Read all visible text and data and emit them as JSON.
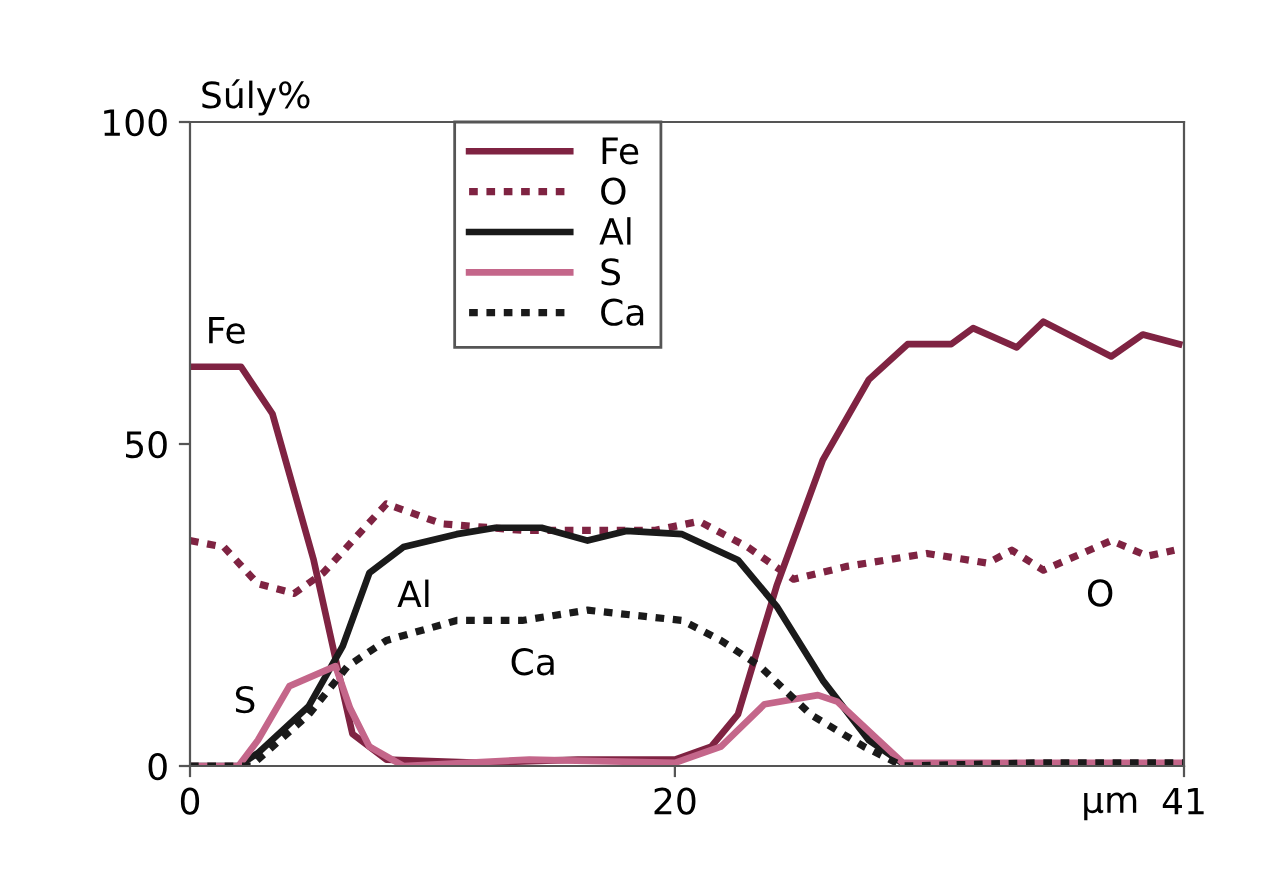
{
  "chart_data": {
    "type": "line",
    "ylabel": "Súly%",
    "xlabel": "µm",
    "xlim": [
      0,
      41
    ],
    "xticks": [
      0,
      20,
      41
    ],
    "ylim": [
      0,
      100
    ],
    "yticks": [
      0,
      50,
      100
    ],
    "grid": false,
    "legend": "top",
    "marker": "none",
    "series": [
      {
        "name": "Fe",
        "color": "#7f2342",
        "line_style": "solid",
        "x": [
          0,
          2.1,
          3.4,
          5.1,
          6.2,
          6.7,
          8.1,
          12,
          16,
          20,
          21.5,
          22.6,
          24.2,
          26.1,
          28,
          29.6,
          31.4,
          32.3,
          34.1,
          35.2,
          38,
          39.3,
          40.8
        ],
        "values": [
          62,
          62,
          54.7,
          32,
          13.3,
          5,
          1,
          0.5,
          1,
          1,
          3,
          8,
          28,
          47.5,
          60,
          65.5,
          65.5,
          68,
          65,
          69,
          63.6,
          67,
          65.5
        ]
      },
      {
        "name": "O",
        "color": "#7f2342",
        "line_style": "dotted",
        "x": [
          0,
          1.4,
          2.8,
          4.3,
          5.5,
          8.1,
          10.4,
          13.7,
          19.2,
          21,
          23,
          24.9,
          27.1,
          30.4,
          32.9,
          33.9,
          35.2,
          38,
          39.5,
          40.6
        ],
        "values": [
          35,
          34,
          28.3,
          26.8,
          30,
          40.7,
          37.6,
          36.6,
          36.6,
          38,
          34,
          29,
          31,
          33,
          31.5,
          33.5,
          30.4,
          35,
          32.6,
          33.5
        ]
      },
      {
        "name": "Al",
        "color": "#1a1a1a",
        "line_style": "solid",
        "x": [
          0,
          2,
          2.8,
          4.9,
          6.3,
          7.4,
          8.8,
          11,
          12.6,
          14.5,
          16.4,
          18,
          20.3,
          22.6,
          24.2,
          26.1,
          28,
          29.4,
          35,
          41
        ],
        "values": [
          0,
          0,
          2,
          9.3,
          18.6,
          30,
          34,
          36,
          37,
          37,
          35,
          36.5,
          36,
          32,
          24.8,
          13.3,
          4,
          0.4,
          0,
          0
        ]
      },
      {
        "name": "S",
        "color": "#c4668a",
        "line_style": "solid",
        "x": [
          0,
          2,
          2.8,
          4.1,
          6,
          6.6,
          7.4,
          8.8,
          14,
          20,
          21.9,
          23.7,
          25.9,
          26.7,
          28.4,
          29.4,
          35,
          41
        ],
        "values": [
          0,
          0,
          4,
          12.4,
          15.5,
          9,
          3,
          0,
          1,
          0.5,
          3,
          9.6,
          11,
          10,
          4,
          0.5,
          0.5,
          0.5
        ]
      },
      {
        "name": "Ca",
        "color": "#1a1a1a",
        "line_style": "dotted",
        "x": [
          0,
          2.5,
          4.9,
          6.5,
          8.1,
          11,
          13.7,
          16.4,
          20.3,
          21.9,
          23.5,
          25.6,
          27.8,
          29.4,
          35,
          41
        ],
        "values": [
          0,
          0,
          8,
          15.5,
          19.5,
          22.6,
          22.6,
          24.2,
          22.6,
          19.5,
          15.5,
          8,
          3,
          0,
          0.5,
          0.5
        ]
      }
    ]
  }
}
